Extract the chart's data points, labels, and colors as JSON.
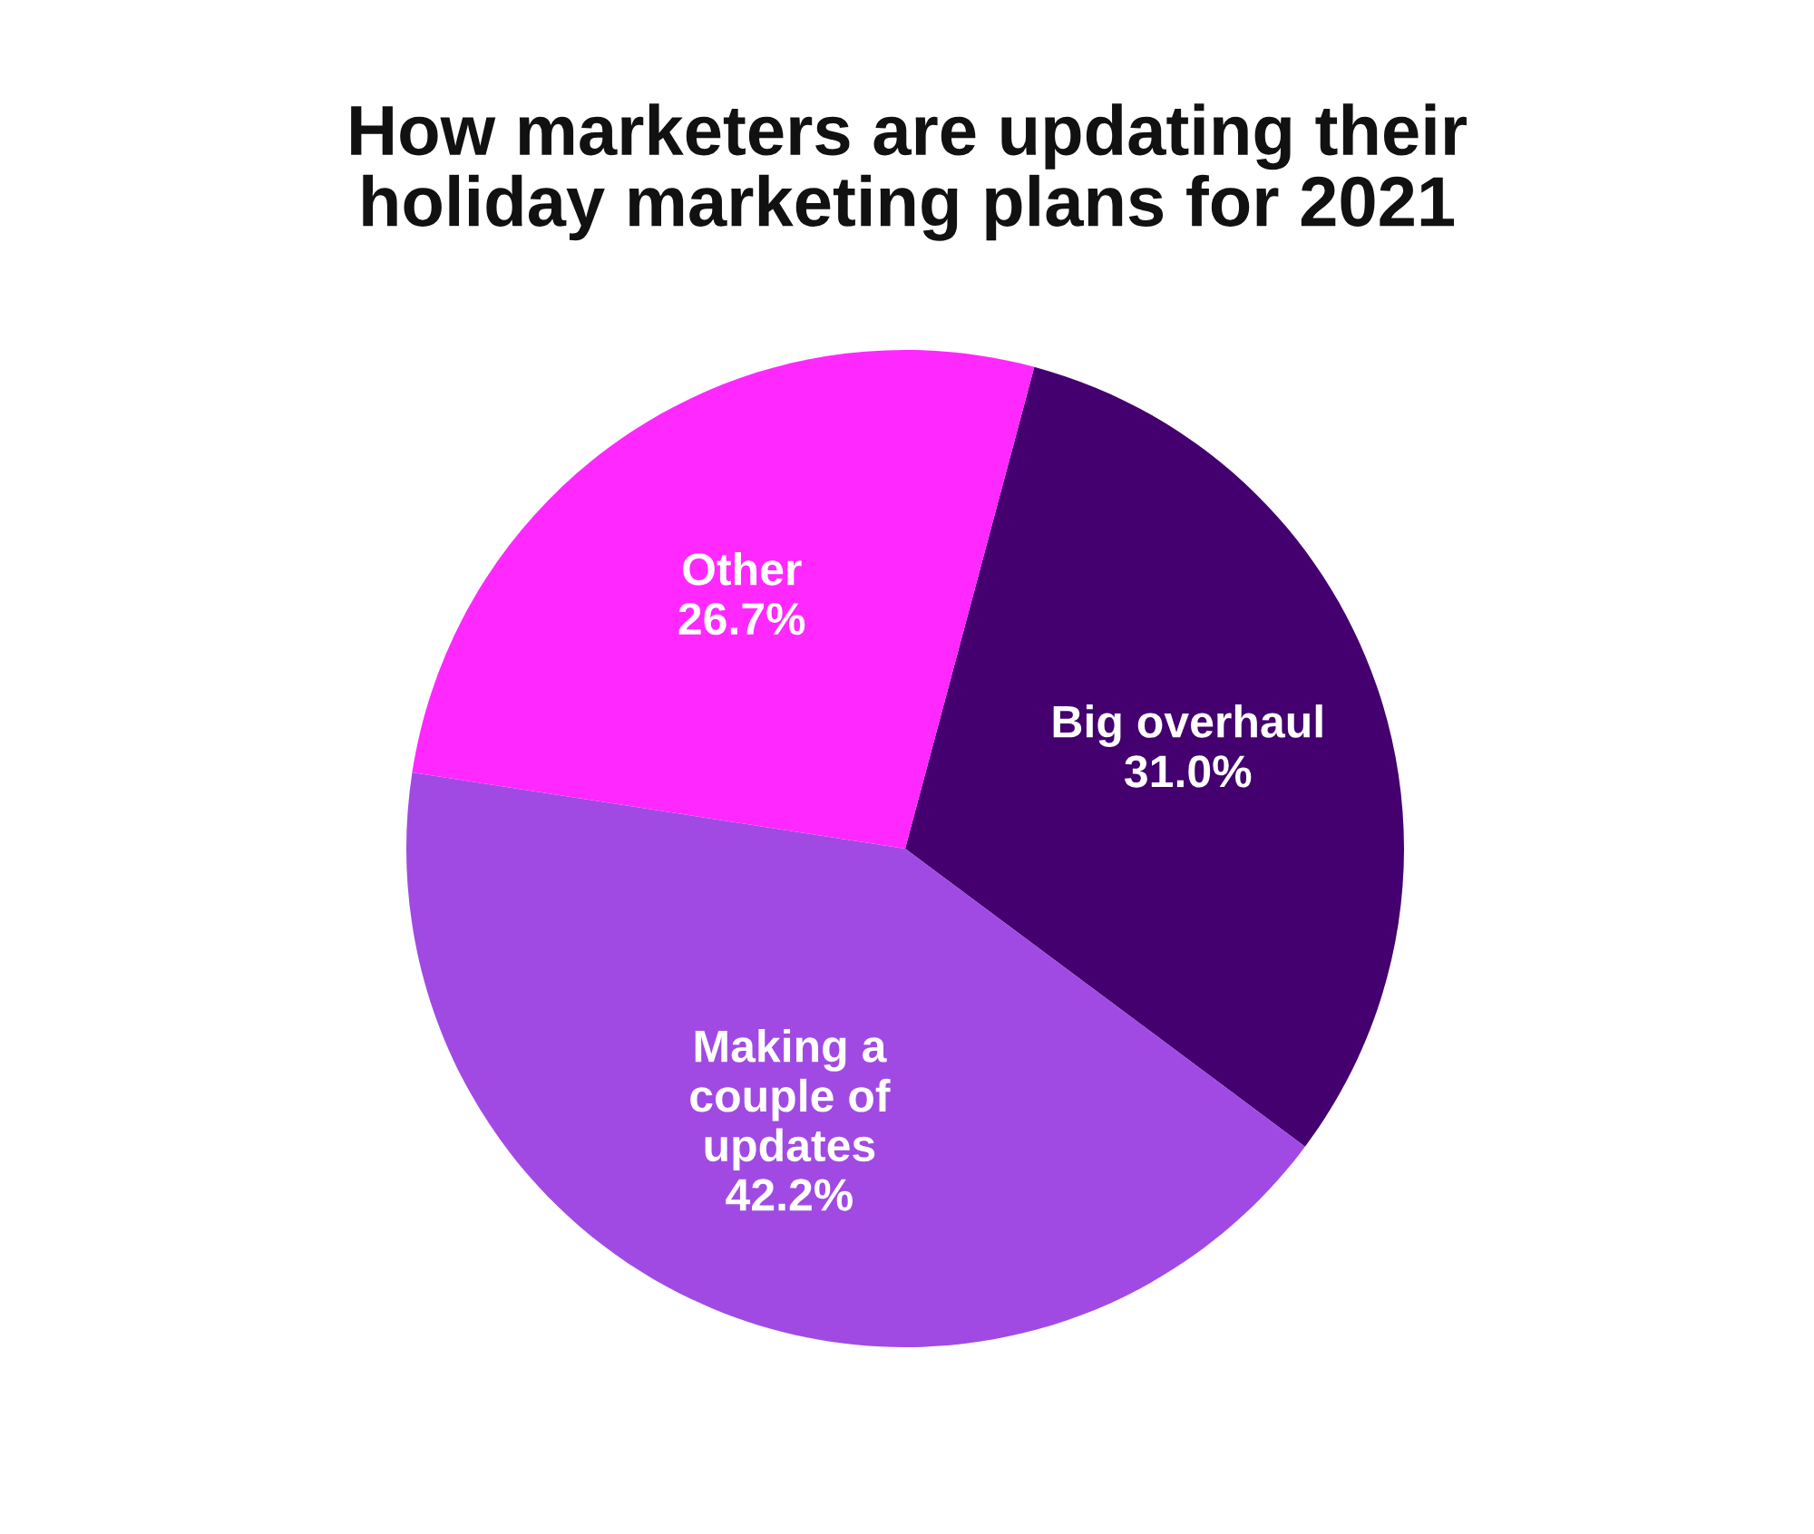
{
  "chart_data": {
    "type": "pie",
    "title": "How marketers are updating their\nholiday marketing plans for 2021",
    "categories": [
      "Big overhaul",
      "Making a\ncouple of\nupdates",
      "Other"
    ],
    "values": [
      31.0,
      42.2,
      26.7
    ],
    "value_labels": [
      "31.0%",
      "42.2%",
      "26.7%"
    ],
    "colors": [
      "#43006e",
      "#a04ae3",
      "#ff28ff"
    ]
  }
}
